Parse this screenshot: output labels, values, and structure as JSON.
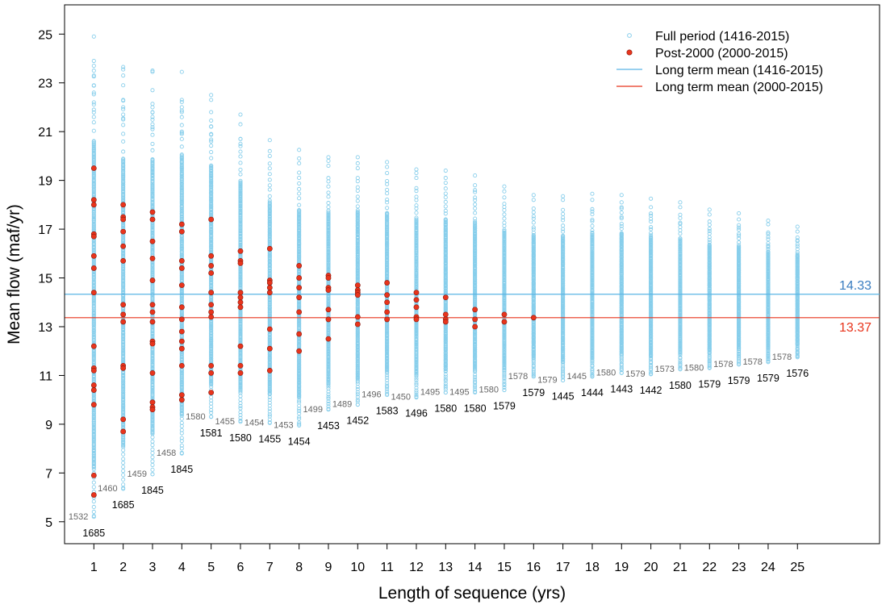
{
  "chart_data": {
    "type": "scatter",
    "title": "",
    "xlabel": "Length of sequence (yrs)",
    "ylabel": "Mean flow (maf/yr)",
    "xlim": [
      0,
      27.8
    ],
    "ylim": [
      4.1,
      26.2
    ],
    "x_ticks": [
      "1",
      "2",
      "3",
      "4",
      "5",
      "6",
      "7",
      "8",
      "9",
      "10",
      "11",
      "12",
      "13",
      "14",
      "15",
      "16",
      "17",
      "18",
      "19",
      "20",
      "21",
      "22",
      "23",
      "24",
      "25"
    ],
    "y_ticks": [
      "5",
      "7",
      "9",
      "11",
      "13",
      "15",
      "17",
      "19",
      "21",
      "23",
      "25"
    ],
    "legend_position": "top-right",
    "grid": false,
    "colors": {
      "full": "#87CEEB",
      "post": "#E8341C",
      "long_full": "#5AB4E5",
      "long_post": "#E8341C",
      "label_full": "#3A7DC0",
      "label_post": "#E8341C"
    },
    "legend": [
      {
        "label": "Full period (1416-2015)",
        "kind": "open-circle"
      },
      {
        "label": "Post-2000 (2000-2015)",
        "kind": "filled-circle"
      },
      {
        "label": "Long term mean (1416-2015)",
        "kind": "line-blue"
      },
      {
        "label": "Long term mean (2000-2015)",
        "kind": "line-red"
      }
    ],
    "long_term_means": [
      {
        "label": "14.33",
        "value": 14.33
      },
      {
        "label": "13.37",
        "value": 13.37
      }
    ],
    "full_period_range": [
      {
        "x": 1,
        "min": 5.2,
        "max": 24.9,
        "max_pts": [
          24.9,
          23.9,
          23.7,
          23.5,
          23.3,
          22.9,
          22.6,
          22.2,
          21.9,
          21.6
        ]
      },
      {
        "x": 2,
        "min": 6.35,
        "max": 23.65,
        "max_pts": [
          23.65,
          23.55,
          23.3,
          22.9,
          22.3,
          22.0,
          21.7,
          21.5
        ]
      },
      {
        "x": 3,
        "min": 6.95,
        "max": 23.5,
        "max_pts": [
          23.5,
          23.45,
          22.7,
          22.0,
          21.8,
          21.6,
          21.3,
          21.1
        ]
      },
      {
        "x": 4,
        "min": 7.8,
        "max": 23.45,
        "max_pts": [
          23.45,
          22.3,
          22.0,
          21.8,
          21.0,
          20.9
        ]
      },
      {
        "x": 5,
        "min": 9.3,
        "max": 22.5,
        "max_pts": [
          22.5,
          22.3,
          21.8,
          21.2,
          20.9,
          20.6
        ]
      },
      {
        "x": 6,
        "min": 9.1,
        "max": 21.7,
        "max_pts": [
          21.7,
          21.3,
          20.7,
          20.5
        ]
      },
      {
        "x": 7,
        "min": 9.05,
        "max": 20.65,
        "max_pts": [
          20.65,
          20.2,
          20.0
        ]
      },
      {
        "x": 8,
        "min": 8.95,
        "max": 20.25,
        "max_pts": [
          20.25,
          19.9,
          19.7
        ]
      },
      {
        "x": 9,
        "min": 9.6,
        "max": 19.95,
        "max_pts": [
          19.95,
          19.8,
          19.6
        ]
      },
      {
        "x": 10,
        "min": 9.8,
        "max": 19.95,
        "max_pts": [
          19.95,
          19.7,
          19.5
        ]
      },
      {
        "x": 11,
        "min": 10.2,
        "max": 19.75,
        "max_pts": [
          19.75,
          19.55,
          19.3
        ]
      },
      {
        "x": 12,
        "min": 10.1,
        "max": 19.45,
        "max_pts": [
          19.45,
          19.3,
          19.1
        ]
      },
      {
        "x": 13,
        "min": 10.3,
        "max": 19.4,
        "max_pts": [
          19.4,
          19.1,
          18.9
        ]
      },
      {
        "x": 14,
        "min": 10.3,
        "max": 19.2,
        "max_pts": [
          19.2,
          18.8,
          18.6
        ]
      },
      {
        "x": 15,
        "min": 10.4,
        "max": 18.75,
        "max_pts": [
          18.75,
          18.55,
          18.3
        ]
      },
      {
        "x": 16,
        "min": 10.95,
        "max": 18.4,
        "max_pts": [
          18.4,
          18.2
        ]
      },
      {
        "x": 17,
        "min": 10.8,
        "max": 18.35,
        "max_pts": [
          18.35,
          18.2
        ]
      },
      {
        "x": 18,
        "min": 10.95,
        "max": 18.45,
        "max_pts": [
          18.45,
          18.2
        ]
      },
      {
        "x": 19,
        "min": 11.1,
        "max": 18.4,
        "max_pts": [
          18.4,
          18.1,
          17.9
        ]
      },
      {
        "x": 20,
        "min": 11.05,
        "max": 18.25,
        "max_pts": [
          18.25,
          17.9
        ]
      },
      {
        "x": 21,
        "min": 11.25,
        "max": 18.1,
        "max_pts": [
          18.1,
          17.9
        ]
      },
      {
        "x": 22,
        "min": 11.3,
        "max": 17.8,
        "max_pts": [
          17.8,
          17.6
        ]
      },
      {
        "x": 23,
        "min": 11.45,
        "max": 17.65,
        "max_pts": [
          17.65,
          17.4
        ]
      },
      {
        "x": 24,
        "min": 11.55,
        "max": 17.35,
        "max_pts": [
          17.35,
          17.2
        ]
      },
      {
        "x": 25,
        "min": 11.75,
        "max": 17.1,
        "max_pts": [
          17.1,
          16.9
        ]
      }
    ],
    "post_2000": [
      {
        "x": 1,
        "values": [
          19.5,
          18.2,
          18.0,
          16.8,
          16.7,
          15.9,
          15.4,
          14.4,
          12.2,
          11.3,
          11.2,
          10.6,
          10.4,
          9.8,
          6.9,
          6.1
        ]
      },
      {
        "x": 2,
        "values": [
          18.0,
          17.5,
          17.4,
          16.9,
          16.3,
          15.7,
          13.9,
          13.5,
          13.2,
          11.4,
          11.3,
          9.2,
          8.7
        ]
      },
      {
        "x": 3,
        "values": [
          17.7,
          17.4,
          16.5,
          15.8,
          14.9,
          13.9,
          13.6,
          13.2,
          12.4,
          12.3,
          11.1,
          9.9,
          9.7,
          9.6
        ]
      },
      {
        "x": 4,
        "values": [
          17.2,
          16.9,
          15.7,
          15.4,
          14.7,
          13.8,
          13.3,
          12.8,
          12.4,
          12.1,
          11.4,
          10.2,
          10.0
        ]
      },
      {
        "x": 5,
        "values": [
          17.4,
          15.9,
          15.5,
          15.2,
          14.4,
          13.9,
          13.6,
          13.4,
          11.4,
          11.1,
          10.3
        ]
      },
      {
        "x": 6,
        "values": [
          16.1,
          15.7,
          15.6,
          14.4,
          14.2,
          14.0,
          13.8,
          12.2,
          11.4,
          11.1
        ]
      },
      {
        "x": 7,
        "values": [
          16.2,
          14.9,
          14.8,
          14.6,
          14.4,
          12.9,
          12.1,
          11.2
        ]
      },
      {
        "x": 8,
        "values": [
          15.5,
          15.0,
          14.6,
          14.2,
          13.6,
          12.7,
          12.0
        ]
      },
      {
        "x": 9,
        "values": [
          15.1,
          15.0,
          14.6,
          14.5,
          13.7,
          13.3,
          12.5
        ]
      },
      {
        "x": 10,
        "values": [
          14.7,
          14.5,
          14.4,
          14.3,
          13.4,
          13.1
        ]
      },
      {
        "x": 11,
        "values": [
          14.8,
          14.3,
          14.0,
          13.6,
          13.3
        ]
      },
      {
        "x": 12,
        "values": [
          14.4,
          14.1,
          13.8,
          13.4,
          13.3
        ]
      },
      {
        "x": 13,
        "values": [
          14.2,
          13.5,
          13.3,
          13.2
        ]
      },
      {
        "x": 14,
        "values": [
          13.7,
          13.3,
          13.0
        ]
      },
      {
        "x": 15,
        "values": [
          13.5,
          13.2
        ]
      },
      {
        "x": 16,
        "values": [
          13.37
        ]
      }
    ],
    "min_annotations": [
      {
        "x": 1,
        "y": 5.2,
        "year_hi": "1532",
        "year_lo": "1685"
      },
      {
        "x": 2,
        "y": 6.35,
        "year_hi": "1460",
        "year_lo": "1685"
      },
      {
        "x": 3,
        "y": 6.95,
        "year_hi": "1459",
        "year_lo": "1845"
      },
      {
        "x": 4,
        "y": 7.8,
        "year_hi": "1458",
        "year_lo": "1845"
      },
      {
        "x": 5,
        "y": 9.3,
        "year_hi": "1580",
        "year_lo": "1581"
      },
      {
        "x": 6,
        "y": 9.1,
        "year_hi": "1455",
        "year_lo": "1580"
      },
      {
        "x": 7,
        "y": 9.05,
        "year_hi": "1454",
        "year_lo": "1455"
      },
      {
        "x": 8,
        "y": 8.95,
        "year_hi": "1453",
        "year_lo": "1454"
      },
      {
        "x": 9,
        "y": 9.6,
        "year_hi": "1499",
        "year_lo": "1453"
      },
      {
        "x": 10,
        "y": 9.8,
        "year_hi": "1489",
        "year_lo": "1452"
      },
      {
        "x": 11,
        "y": 10.2,
        "year_hi": "1496",
        "year_lo": "1583"
      },
      {
        "x": 12,
        "y": 10.1,
        "year_hi": "1450",
        "year_lo": "1496"
      },
      {
        "x": 13,
        "y": 10.3,
        "year_hi": "1495",
        "year_lo": "1580"
      },
      {
        "x": 14,
        "y": 10.3,
        "year_hi": "1495",
        "year_lo": "1580"
      },
      {
        "x": 15,
        "y": 10.4,
        "year_hi": "1580",
        "year_lo": "1579"
      },
      {
        "x": 16,
        "y": 10.95,
        "year_hi": "1578",
        "year_lo": "1579"
      },
      {
        "x": 17,
        "y": 10.8,
        "year_hi": "1579",
        "year_lo": "1445"
      },
      {
        "x": 18,
        "y": 10.95,
        "year_hi": "1445",
        "year_lo": "1444"
      },
      {
        "x": 19,
        "y": 11.1,
        "year_hi": "1580",
        "year_lo": "1443"
      },
      {
        "x": 20,
        "y": 11.05,
        "year_hi": "1579",
        "year_lo": "1442"
      },
      {
        "x": 21,
        "y": 11.25,
        "year_hi": "1573",
        "year_lo": "1580"
      },
      {
        "x": 22,
        "y": 11.3,
        "year_hi": "1580",
        "year_lo": "1579"
      },
      {
        "x": 23,
        "y": 11.45,
        "year_hi": "1578",
        "year_lo": "1579"
      },
      {
        "x": 24,
        "y": 11.55,
        "year_hi": "1578",
        "year_lo": "1579"
      },
      {
        "x": 25,
        "y": 11.75,
        "year_hi": "1578",
        "year_lo": "1576"
      }
    ]
  }
}
